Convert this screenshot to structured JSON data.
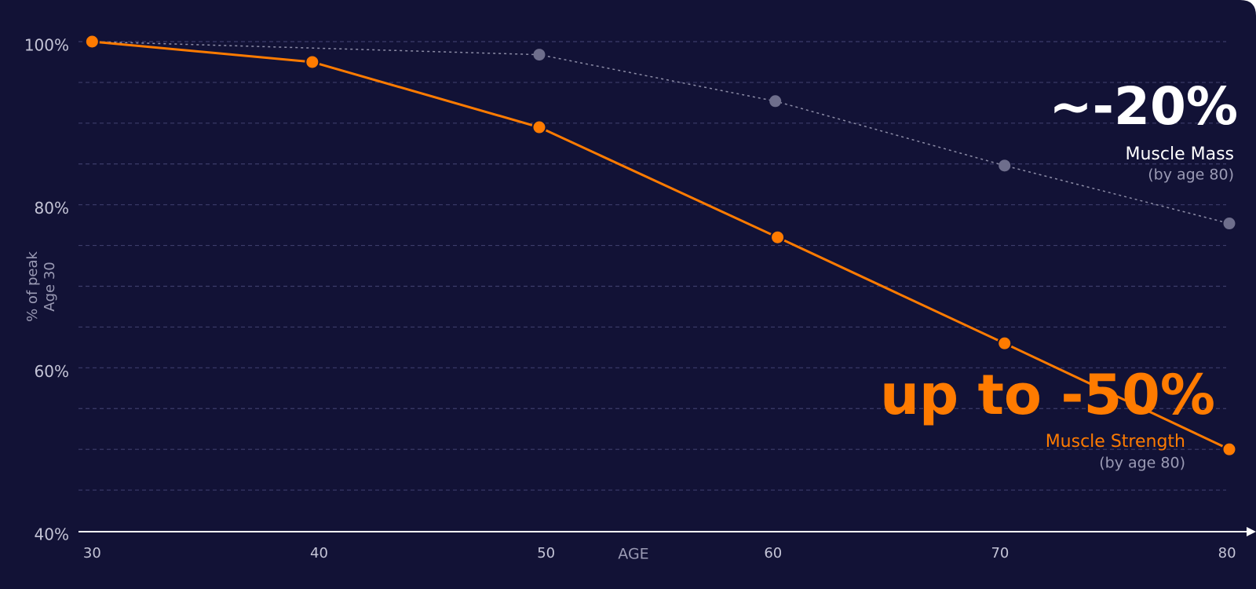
{
  "chart_data": {
    "type": "line",
    "x_label": "AGE",
    "y_label": [
      "% of peak",
      "Age 30"
    ],
    "xlim": [
      29.4,
      81
    ],
    "xticks": [
      30,
      40,
      50,
      60,
      70,
      80
    ],
    "ylim": [
      40,
      100
    ],
    "yticks": [
      {
        "value": 40,
        "label": "40%"
      },
      {
        "value": 60,
        "label": "60%"
      },
      {
        "value": 80,
        "label": "80%"
      },
      {
        "value": 100,
        "label": "100%"
      }
    ],
    "ygrid": [
      45,
      50,
      55,
      60,
      65,
      70,
      75,
      80,
      85,
      90,
      95,
      100
    ],
    "grid": true,
    "series": [
      {
        "name": "Muscle Mass",
        "color": "#6e6e8c",
        "line_style": "dotted",
        "x": [
          30,
          49.7,
          60.1,
          70.2,
          80.1
        ],
        "values": [
          100,
          98.4,
          92.7,
          84.8,
          77.7
        ]
      },
      {
        "name": "Muscle Strength",
        "color": "#ff7b00",
        "line_style": "solid",
        "x": [
          30,
          39.7,
          49.7,
          60.2,
          70.2,
          80.1
        ],
        "values": [
          100,
          97.5,
          89.5,
          76,
          63,
          50
        ]
      }
    ],
    "annotations": [
      {
        "headline": "~-20%",
        "note": "(by age 80)"
      },
      {
        "headline": "up to -50%",
        "note": "(by age 80)"
      }
    ]
  }
}
